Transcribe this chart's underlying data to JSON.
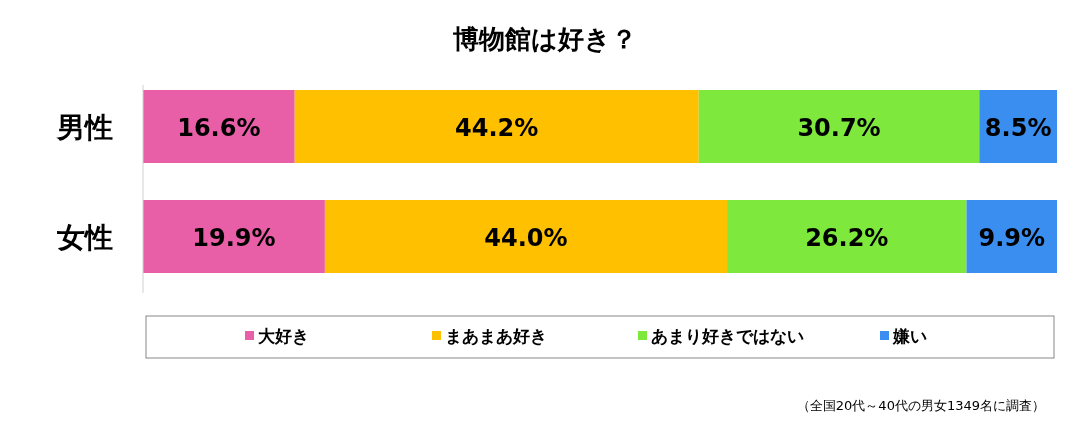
{
  "chart_data": {
    "type": "bar",
    "orientation": "horizontal",
    "stacked": true,
    "title": "博物館は好き？",
    "categories": [
      "男性",
      "女性"
    ],
    "xlim": [
      0,
      100
    ],
    "legend": "bottom",
    "tick_labels": "y",
    "annotations": [
      "（全国20代～40代の男女1349名に調査）"
    ],
    "series": [
      {
        "name": "大好き",
        "color": "#e85fa8",
        "values": [
          16.6,
          19.9
        ],
        "value_labels": [
          "16.6%",
          "19.9%"
        ]
      },
      {
        "name": "まあまあ好き",
        "color": "#ffc000",
        "values": [
          44.2,
          44.0
        ],
        "value_labels": [
          "44.2%",
          "44.0%"
        ]
      },
      {
        "name": "あまり好きではない",
        "color": "#7ee83d",
        "values": [
          30.7,
          26.2
        ],
        "value_labels": [
          "30.7%",
          "26.2%"
        ]
      },
      {
        "name": "嫌い",
        "color": "#3a8ef0",
        "values": [
          8.5,
          9.9
        ],
        "value_labels": [
          "8.5%",
          "9.9%"
        ]
      }
    ]
  }
}
